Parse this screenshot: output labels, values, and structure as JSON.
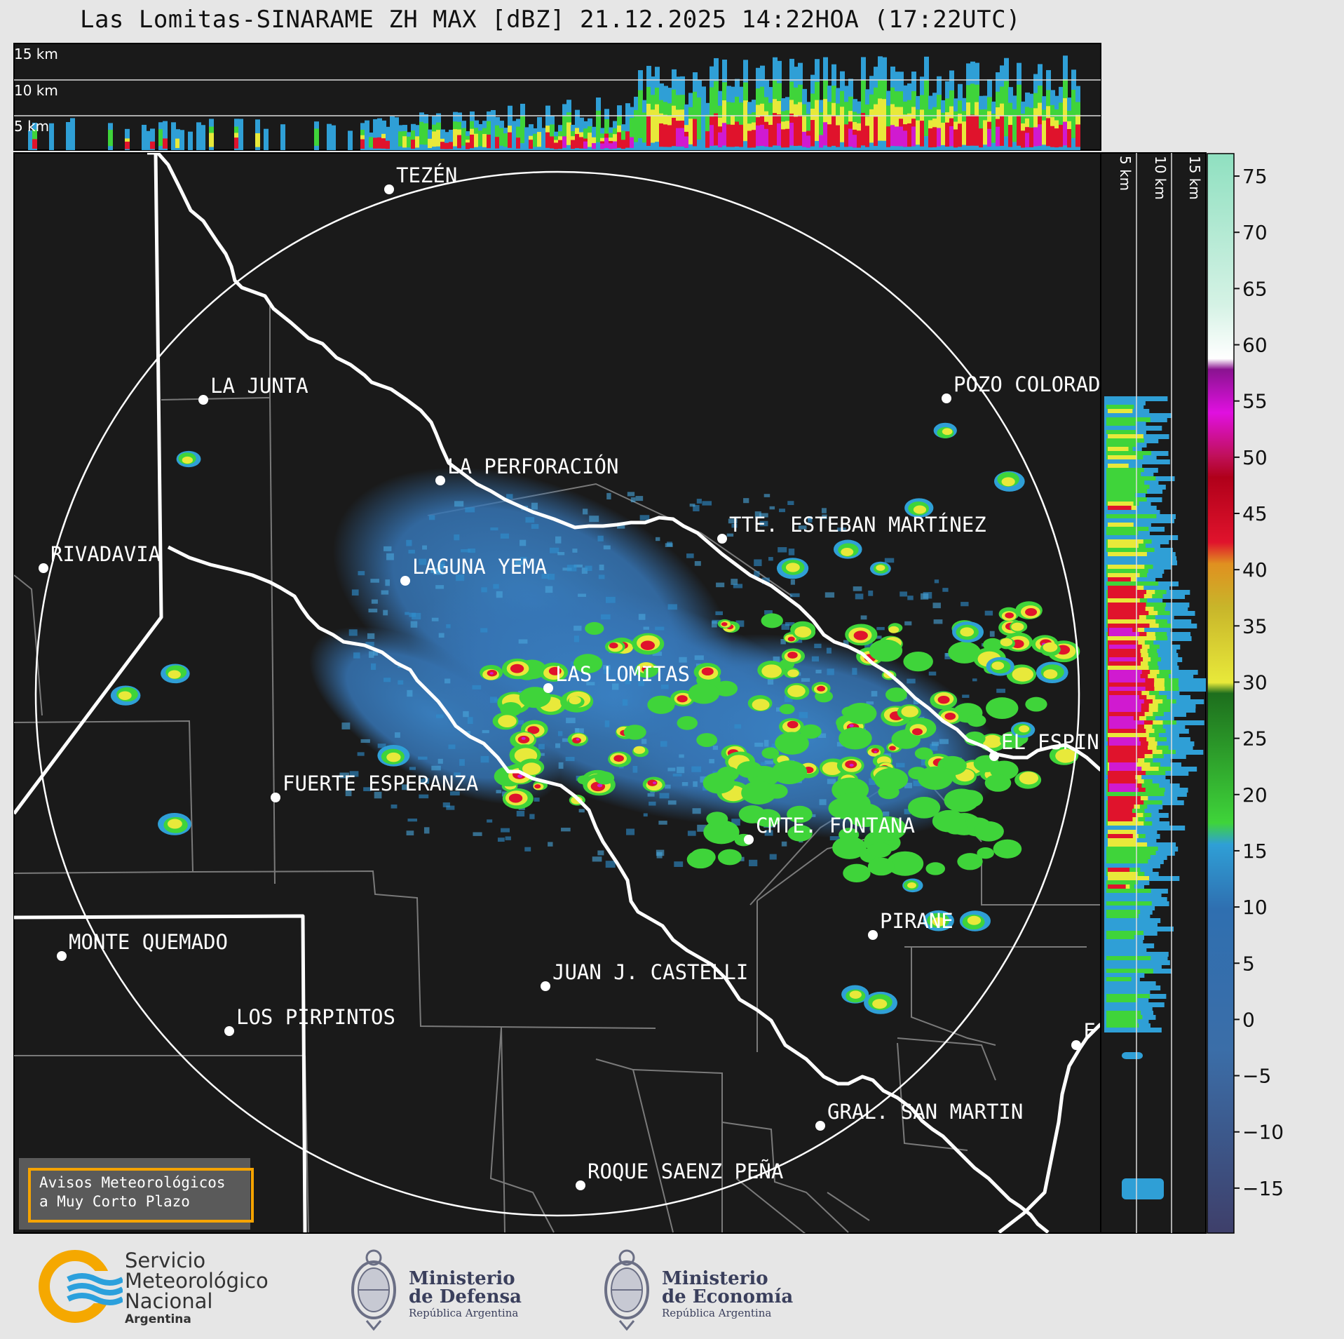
{
  "title": "Las Lomitas-SINARAME ZH MAX [dBZ] 21.12.2025 14:22HOA (17:22UTC)",
  "top_profile_labels": [
    "15 km",
    "10 km",
    "5 km"
  ],
  "right_profile_labels": [
    "5 km",
    "10 km",
    "15 km"
  ],
  "cities": [
    {
      "name": "TEZÉN"
    },
    {
      "name": "LA JUNTA"
    },
    {
      "name": "POZO COLORAD"
    },
    {
      "name": "LA PERFORACIÓN"
    },
    {
      "name": "TTE. ESTEBAN MARTÍNEZ"
    },
    {
      "name": "RIVADAVIA"
    },
    {
      "name": "LAGUNA YEMA"
    },
    {
      "name": "LAS LOMITAS"
    },
    {
      "name": "EL ESPIN"
    },
    {
      "name": "FUERTE ESPERANZA"
    },
    {
      "name": "CMTE. FONTANA"
    },
    {
      "name": "PIRANE"
    },
    {
      "name": "MONTE QUEMADO"
    },
    {
      "name": "JUAN J. CASTELLI"
    },
    {
      "name": "LOS PIRPINTOS"
    },
    {
      "name": "F"
    },
    {
      "name": "GRAL. SAN MARTIN"
    },
    {
      "name": "ROQUE SAENZ PEÑA"
    }
  ],
  "colorbar": {
    "unit": "dBZ",
    "min": -19,
    "max": 77,
    "ticks": [
      "75",
      "70",
      "65",
      "60",
      "55",
      "50",
      "45",
      "40",
      "35",
      "30",
      "25",
      "20",
      "15",
      "10",
      "5",
      "0",
      "−5",
      "−10",
      "−15"
    ],
    "tick_values": [
      75,
      70,
      65,
      60,
      55,
      50,
      45,
      40,
      35,
      30,
      25,
      20,
      15,
      10,
      5,
      0,
      -5,
      -10,
      -15
    ],
    "colors": {
      "lowest": "#3e3f6a",
      "cold_blue": "#3b6ea8",
      "blue": "#2f9fd6",
      "green": "#3fd43a",
      "dark_green": "#1d6e1d",
      "yellow": "#e8e93a",
      "orange": "#e09020",
      "red": "#e0132c",
      "magenta": "#d01ad0",
      "purple": "#8a1390",
      "white": "#ffffff",
      "mint": "#8fe0c0"
    }
  },
  "warning_box": {
    "line1": "Avisos Meteorológicos",
    "line2": "a Muy Corto Plazo"
  },
  "logos": {
    "smn": {
      "line1": "Servicio",
      "line2": "Meteorológico",
      "line3": "Nacional",
      "line4": "Argentina"
    },
    "defensa": {
      "line1": "Ministerio",
      "line2": "de Defensa",
      "line3": "República Argentina"
    },
    "economia": {
      "line1": "Ministerio",
      "line2": "de Economía",
      "line3": "República Argentina"
    }
  }
}
